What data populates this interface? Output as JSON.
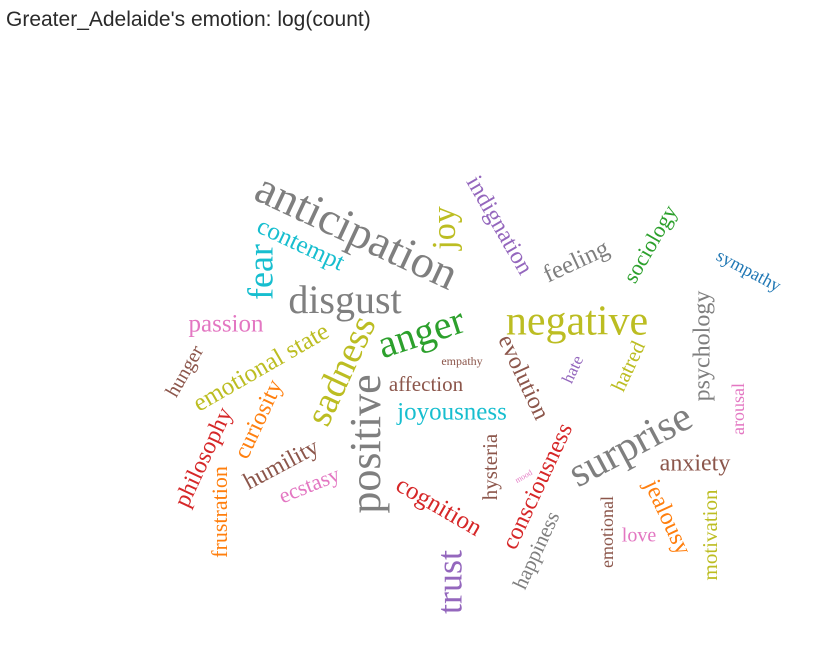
{
  "chart_data": {
    "type": "wordcloud",
    "title": "Greater_Adelaide's emotion: log(count)",
    "words": [
      {
        "text": "anticipation",
        "color": "#7f7f7f"
      },
      {
        "text": "negative",
        "color": "#bcbd22"
      },
      {
        "text": "surprise",
        "color": "#7f7f7f"
      },
      {
        "text": "positive",
        "color": "#7f7f7f"
      },
      {
        "text": "disgust",
        "color": "#7f7f7f"
      },
      {
        "text": "anger",
        "color": "#2ca02c"
      },
      {
        "text": "sadness",
        "color": "#bcbd22"
      },
      {
        "text": "trust",
        "color": "#9467bd"
      },
      {
        "text": "joy",
        "color": "#bcbd22"
      },
      {
        "text": "fear",
        "color": "#17becf"
      },
      {
        "text": "joyousness",
        "color": "#17becf"
      },
      {
        "text": "emotional state",
        "color": "#bcbd22"
      },
      {
        "text": "indignation",
        "color": "#9467bd"
      },
      {
        "text": "psychology",
        "color": "#7f7f7f"
      },
      {
        "text": "cognition",
        "color": "#d62728"
      },
      {
        "text": "consciousness",
        "color": "#d62728"
      },
      {
        "text": "contempt",
        "color": "#17becf"
      },
      {
        "text": "feeling",
        "color": "#7f7f7f"
      },
      {
        "text": "passion",
        "color": "#e377c2"
      },
      {
        "text": "curiosity",
        "color": "#ff7f0e"
      },
      {
        "text": "humility",
        "color": "#8c564b"
      },
      {
        "text": "philosophy",
        "color": "#d62728"
      },
      {
        "text": "evolution",
        "color": "#8c564b"
      },
      {
        "text": "jealousy",
        "color": "#ff7f0e"
      },
      {
        "text": "anxiety",
        "color": "#8c564b"
      },
      {
        "text": "frustration",
        "color": "#ff7f0e"
      },
      {
        "text": "ecstasy",
        "color": "#e377c2"
      },
      {
        "text": "sociology",
        "color": "#2ca02c"
      },
      {
        "text": "happiness",
        "color": "#7f7f7f"
      },
      {
        "text": "affection",
        "color": "#8c564b"
      },
      {
        "text": "hysteria",
        "color": "#8c564b"
      },
      {
        "text": "hatred",
        "color": "#bcbd22"
      },
      {
        "text": "motivation",
        "color": "#bcbd22"
      },
      {
        "text": "hunger",
        "color": "#8c564b"
      },
      {
        "text": "sympathy",
        "color": "#1f77b4"
      },
      {
        "text": "emotional",
        "color": "#8c564b"
      },
      {
        "text": "love",
        "color": "#e377c2"
      },
      {
        "text": "arousal",
        "color": "#e377c2"
      },
      {
        "text": "hate",
        "color": "#9467bd"
      },
      {
        "text": "empathy",
        "color": "#8c564b"
      },
      {
        "text": "mood",
        "color": "#e377c2"
      },
      {
        "text": "",
        "color": "#bcbd22"
      }
    ]
  }
}
